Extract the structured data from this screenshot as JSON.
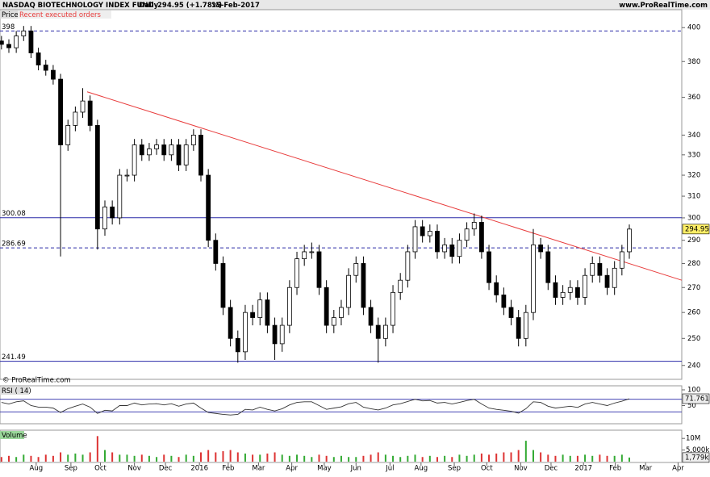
{
  "chart_data": {
    "type": "candlestick",
    "log_scale": true,
    "title": "NASDAQ BIOTECHNOLOGY INDEX FUND",
    "period": "Daily",
    "price_change": "294.95 (+1.78%)",
    "date": "15-Feb-2017",
    "website": "www.ProRealTime.com",
    "panel_label": "Price",
    "orders_label": "Recent executed orders",
    "copyright": "© ProRealTime.com",
    "colors": {
      "up": "#ffffff",
      "down": "#000000",
      "level": "#2a2aa8",
      "trend": "#e83c3c"
    },
    "xlim": [
      -0.2,
      92.1
    ],
    "xticks": [
      {
        "value": 4.7,
        "label": "Aug"
      },
      {
        "value": 9.4,
        "label": "Sep"
      },
      {
        "value": 13.4,
        "label": "Oct"
      },
      {
        "value": 18.0,
        "label": "Nov"
      },
      {
        "value": 22.2,
        "label": "Dec"
      },
      {
        "value": 26.8,
        "label": "2016"
      },
      {
        "value": 30.7,
        "label": "Feb"
      },
      {
        "value": 34.8,
        "label": "Mar"
      },
      {
        "value": 39.3,
        "label": "Apr"
      },
      {
        "value": 43.7,
        "label": "May"
      },
      {
        "value": 48.0,
        "label": "Jun"
      },
      {
        "value": 52.6,
        "label": "Jul"
      },
      {
        "value": 56.8,
        "label": "Aug"
      },
      {
        "value": 61.3,
        "label": "Sep"
      },
      {
        "value": 65.7,
        "label": "Oct"
      },
      {
        "value": 70.3,
        "label": "Nov"
      },
      {
        "value": 74.4,
        "label": "Dec"
      },
      {
        "value": 78.8,
        "label": "2017"
      },
      {
        "value": 83.1,
        "label": "Feb"
      },
      {
        "value": 87.2,
        "label": "Mar"
      },
      {
        "value": 91.6,
        "label": "Apr"
      }
    ],
    "ylim": [
      235,
      411
    ],
    "yticks": [
      240,
      250,
      260,
      270,
      280,
      290,
      300,
      310,
      320,
      330,
      340,
      360,
      380,
      400
    ],
    "open": [
      392,
      390,
      388,
      395,
      398,
      385,
      378,
      375,
      370,
      335,
      345,
      352,
      358,
      345,
      295,
      305,
      300,
      320,
      320,
      335,
      330,
      333,
      335,
      330,
      335,
      325,
      335,
      340,
      320,
      290,
      280,
      262,
      250,
      245,
      260,
      258,
      265,
      255,
      248,
      255,
      270,
      282,
      285,
      285,
      270,
      255,
      258,
      262,
      275,
      280,
      262,
      255,
      250,
      255,
      268,
      273,
      285,
      296,
      292,
      294,
      285,
      288,
      283,
      290,
      295,
      298,
      285,
      272,
      267,
      262,
      258,
      250,
      260,
      288,
      285,
      272,
      266,
      268,
      270,
      266,
      275,
      280,
      275,
      270,
      278,
      285
    ],
    "high": [
      395,
      393,
      398,
      401,
      401,
      388,
      381,
      378,
      373,
      348,
      355,
      365,
      361,
      348,
      308,
      308,
      323,
      323,
      338,
      338,
      336,
      338,
      338,
      338,
      338,
      338,
      343,
      343,
      323,
      293,
      283,
      265,
      253,
      263,
      263,
      268,
      268,
      258,
      258,
      273,
      285,
      288,
      289,
      288,
      273,
      261,
      265,
      278,
      283,
      283,
      265,
      258,
      258,
      271,
      276,
      288,
      299,
      299,
      297,
      297,
      291,
      291,
      293,
      298,
      302,
      301,
      288,
      275,
      270,
      265,
      261,
      263,
      295,
      291,
      288,
      275,
      271,
      273,
      273,
      278,
      283,
      283,
      278,
      281,
      288,
      297
    ],
    "low": [
      387,
      385,
      385,
      392,
      382,
      375,
      372,
      367,
      283,
      332,
      342,
      349,
      342,
      286,
      292,
      297,
      297,
      317,
      317,
      327,
      327,
      330,
      327,
      327,
      322,
      322,
      332,
      317,
      287,
      277,
      259,
      247,
      241,
      242,
      255,
      255,
      252,
      242,
      245,
      252,
      267,
      279,
      282,
      267,
      252,
      252,
      255,
      259,
      272,
      259,
      252,
      241,
      247,
      252,
      265,
      270,
      282,
      289,
      289,
      282,
      282,
      280,
      280,
      287,
      292,
      282,
      269,
      264,
      259,
      255,
      247,
      247,
      257,
      282,
      269,
      263,
      263,
      265,
      263,
      263,
      272,
      272,
      267,
      267,
      275,
      282
    ],
    "close": [
      390,
      388,
      395,
      398,
      385,
      378,
      375,
      370,
      335,
      345,
      352,
      358,
      345,
      295,
      305,
      300,
      320,
      320,
      335,
      330,
      333,
      335,
      330,
      335,
      325,
      335,
      340,
      320,
      290,
      280,
      262,
      250,
      245,
      260,
      258,
      265,
      255,
      248,
      255,
      270,
      282,
      285,
      285,
      270,
      255,
      258,
      262,
      275,
      280,
      262,
      255,
      250,
      255,
      268,
      273,
      285,
      296,
      292,
      294,
      285,
      288,
      283,
      290,
      295,
      298,
      285,
      272,
      267,
      262,
      258,
      250,
      260,
      288,
      285,
      272,
      266,
      268,
      270,
      266,
      275,
      280,
      275,
      270,
      278,
      285,
      294.95
    ],
    "levels": [
      {
        "value": 398,
        "style": "dashed"
      },
      {
        "value": 300.08,
        "style": "solid"
      },
      {
        "value": 286.69,
        "style": "dashed"
      },
      {
        "value": 241.49,
        "style": "solid"
      }
    ],
    "trendline": {
      "x": [
        11.6,
        92.1
      ],
      "y": [
        363,
        273
      ]
    },
    "rsi": {
      "name": "RSI ( 14)",
      "ylim": [
        0,
        100
      ],
      "yticks": [
        50,
        100
      ],
      "levels": [
        30,
        70
      ],
      "values": [
        60,
        55,
        62,
        65,
        50,
        45,
        45,
        42,
        28,
        40,
        48,
        55,
        45,
        25,
        35,
        33,
        50,
        50,
        58,
        52,
        55,
        56,
        52,
        56,
        48,
        55,
        58,
        42,
        28,
        25,
        22,
        20,
        22,
        38,
        36,
        45,
        38,
        33,
        40,
        52,
        60,
        62,
        62,
        50,
        38,
        42,
        46,
        56,
        60,
        45,
        40,
        36,
        42,
        52,
        56,
        63,
        70,
        65,
        66,
        58,
        60,
        55,
        60,
        66,
        70,
        55,
        42,
        38,
        35,
        32,
        26,
        40,
        62,
        60,
        48,
        42,
        45,
        48,
        44,
        55,
        60,
        55,
        50,
        58,
        64,
        71.761
      ]
    },
    "volume": {
      "name": "Volume",
      "ylim": [
        0,
        12500000
      ],
      "yticks": [
        {
          "value": 10000000,
          "label": "10M"
        },
        {
          "value": 5000000,
          "label": "5,000k"
        }
      ],
      "last_value_label": "1,779k",
      "values": [
        2000000,
        2500000,
        2000000,
        3000000,
        2500000,
        2000000,
        3000000,
        2500000,
        4000000,
        3000000,
        3500000,
        3000000,
        4000000,
        11000000,
        5000000,
        4000000,
        3000000,
        3000000,
        2500000,
        3000000,
        2500000,
        2000000,
        3000000,
        2500000,
        2000000,
        3000000,
        2500000,
        4000000,
        5000000,
        4000000,
        4500000,
        5000000,
        4000000,
        3500000,
        3000000,
        3000000,
        3500000,
        4000000,
        3000000,
        2500000,
        3000000,
        2500000,
        2000000,
        3000000,
        2500000,
        2000000,
        2500000,
        2000000,
        2000000,
        2500000,
        3000000,
        4000000,
        3000000,
        2500000,
        2000000,
        2500000,
        3000000,
        2000000,
        2500000,
        2000000,
        2500000,
        2000000,
        3000000,
        2500000,
        3000000,
        3500000,
        3000000,
        3500000,
        4000000,
        4000000,
        5000000,
        9000000,
        5000000,
        4000000,
        3000000,
        2500000,
        3000000,
        2500000,
        2500000,
        3000000,
        2500000,
        3000000,
        2500000,
        2500000,
        3000000,
        1779000
      ]
    }
  }
}
